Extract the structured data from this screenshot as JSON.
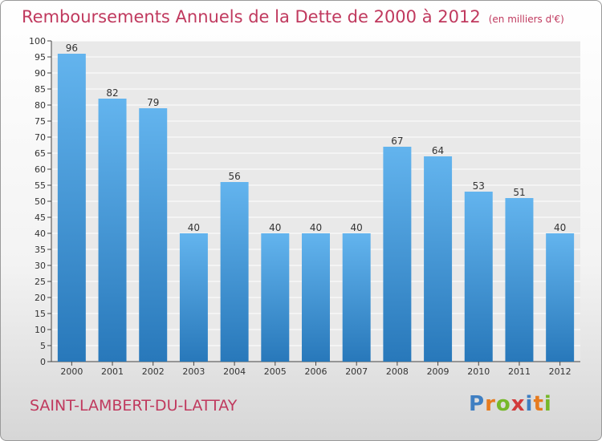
{
  "header": {
    "title": "Remboursements Annuels de la Dette de 2000 à 2012",
    "unit": "(en milliers d'€)"
  },
  "footer": {
    "commune": "SAINT-LAMBERT-DU-LATTAY",
    "brand": "Proxiti",
    "brand_colors": [
      "#3f7fc2",
      "#e67b1f",
      "#76b82a",
      "#d23b3b",
      "#3f7fc2",
      "#e67b1f",
      "#76b82a"
    ]
  },
  "colors": {
    "title": "#c0395e",
    "bar_top": "#63b4ee",
    "bar_bottom": "#2878ba",
    "plot_bg": "#e9e9e9",
    "grid": "#ffffff"
  },
  "chart_data": {
    "type": "bar",
    "title": "Remboursements Annuels de la Dette de 2000 à 2012",
    "xlabel": "",
    "ylabel": "",
    "ylim": [
      0,
      100
    ],
    "ytick_step": 5,
    "grid": true,
    "categories": [
      "2000",
      "2001",
      "2002",
      "2003",
      "2004",
      "2005",
      "2006",
      "2007",
      "2008",
      "2009",
      "2010",
      "2011",
      "2012"
    ],
    "values": [
      96,
      82,
      79,
      40,
      56,
      40,
      40,
      40,
      67,
      64,
      53,
      51,
      40
    ]
  }
}
